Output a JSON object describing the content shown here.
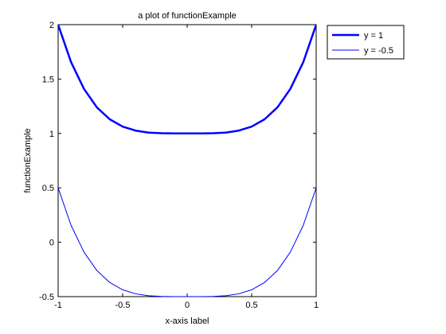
{
  "chart_data": {
    "type": "line",
    "title": "a plot of functionExample",
    "xlabel": "x-axis label",
    "ylabel": "functionExample",
    "xlim": [
      -1,
      1
    ],
    "ylim": [
      -0.5,
      2
    ],
    "x_ticks": [
      -1,
      -0.5,
      0,
      0.5,
      1
    ],
    "x_tick_labels": [
      "-1",
      "-0.5",
      "0",
      "0.5",
      "1"
    ],
    "y_ticks": [
      -0.5,
      0,
      0.5,
      1,
      1.5,
      2
    ],
    "y_tick_labels": [
      "-0.5",
      "0",
      "0.5",
      "1",
      "1.5",
      "2"
    ],
    "grid": false,
    "legend_position": "outside-top-right",
    "series": [
      {
        "name": "y = 1",
        "color": "#0000ff",
        "line_style": "thick",
        "x": [
          -1,
          -0.9,
          -0.8,
          -0.7,
          -0.6,
          -0.5,
          -0.4,
          -0.3,
          -0.2,
          -0.1,
          0,
          0.1,
          0.2,
          0.3,
          0.4,
          0.5,
          0.6,
          0.7,
          0.8,
          0.9,
          1
        ],
        "y": [
          2,
          1.656,
          1.41,
          1.24,
          1.13,
          1.063,
          1.026,
          1.008,
          1.002,
          1.0,
          1.0,
          1.0,
          1.002,
          1.008,
          1.026,
          1.063,
          1.13,
          1.24,
          1.41,
          1.656,
          2
        ]
      },
      {
        "name": "y = -0.5",
        "color": "#0000ff",
        "line_style": "thin",
        "x": [
          -1,
          -0.9,
          -0.8,
          -0.7,
          -0.6,
          -0.5,
          -0.4,
          -0.3,
          -0.2,
          -0.1,
          0,
          0.1,
          0.2,
          0.3,
          0.4,
          0.5,
          0.6,
          0.7,
          0.8,
          0.9,
          1
        ],
        "y": [
          0.5,
          0.156,
          -0.09,
          -0.26,
          -0.37,
          -0.437,
          -0.474,
          -0.492,
          -0.498,
          -0.5,
          -0.5,
          -0.5,
          -0.498,
          -0.492,
          -0.474,
          -0.437,
          -0.37,
          -0.26,
          -0.09,
          0.156,
          0.5
        ]
      }
    ]
  }
}
